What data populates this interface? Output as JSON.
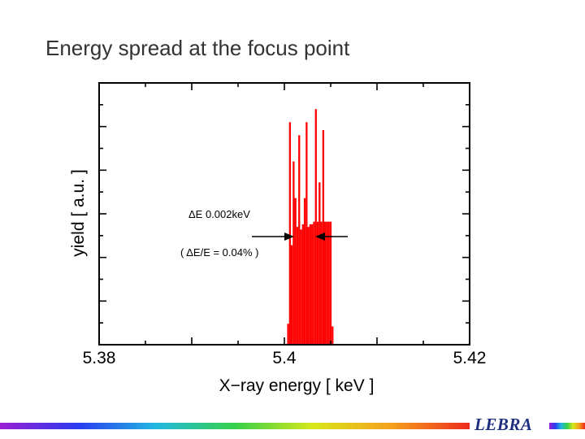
{
  "slide": {
    "title": "Energy spread at the focus point",
    "brand": "LEBRA",
    "rainbow": [
      "#9b1fd3",
      "#2a3cf0",
      "#22b8e0",
      "#35d04a",
      "#d8e81a",
      "#f5a01c",
      "#ee2b1c"
    ]
  },
  "chart_data": {
    "type": "bar",
    "title": "",
    "xlabel": "X−ray energy  [ keV ]",
    "ylabel": "yield  [ a.u. ]",
    "xlim": [
      5.38,
      5.42
    ],
    "ylim": [
      0,
      1
    ],
    "xticks": [
      5.38,
      5.4,
      5.42
    ],
    "xtick_labels": [
      "5.38",
      "5.4",
      "5.42"
    ],
    "color": "#ff0000",
    "bar_width": 0.0002,
    "x": [
      5.4004,
      5.4006,
      5.4008,
      5.401,
      5.4012,
      5.4014,
      5.4016,
      5.4018,
      5.402,
      5.4022,
      5.4024,
      5.4026,
      5.4028,
      5.403,
      5.4032,
      5.4034,
      5.4036,
      5.4038,
      5.404,
      5.4042,
      5.4044,
      5.4046,
      5.4048,
      5.405,
      5.4052
    ],
    "values": [
      0.08,
      0.85,
      0.38,
      0.7,
      0.56,
      0.45,
      0.8,
      0.44,
      0.46,
      0.56,
      0.85,
      0.45,
      0.46,
      0.46,
      0.47,
      0.9,
      0.47,
      0.62,
      0.47,
      0.82,
      0.47,
      0.47,
      0.47,
      0.47,
      0.07
    ],
    "annotations": {
      "delta_e": "ΔE  0.002keV",
      "delta_e_ratio": "( ΔE/E = 0.04% )"
    }
  }
}
